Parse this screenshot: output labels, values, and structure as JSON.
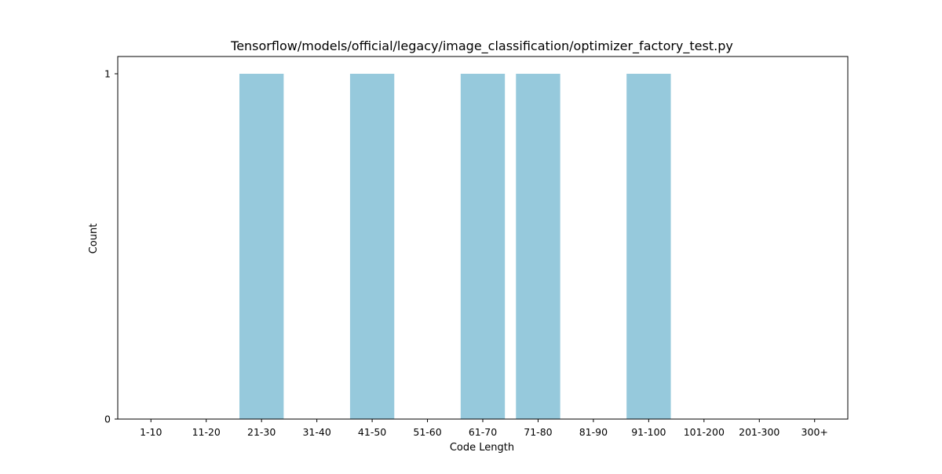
{
  "chart_data": {
    "type": "bar",
    "title": "Tensorflow/models/official/legacy/image_classification/optimizer_factory_test.py",
    "xlabel": "Code Length",
    "ylabel": "Count",
    "categories": [
      "1-10",
      "11-20",
      "21-30",
      "31-40",
      "41-50",
      "51-60",
      "61-70",
      "71-80",
      "81-90",
      "91-100",
      "101-200",
      "201-300",
      "300+"
    ],
    "values": [
      0,
      0,
      1,
      0,
      1,
      0,
      1,
      1,
      0,
      1,
      0,
      0,
      0
    ],
    "yticks": [
      0,
      1
    ],
    "ylim": [
      0,
      1.05
    ],
    "grid": false,
    "bar_color": "#96c9dc"
  }
}
